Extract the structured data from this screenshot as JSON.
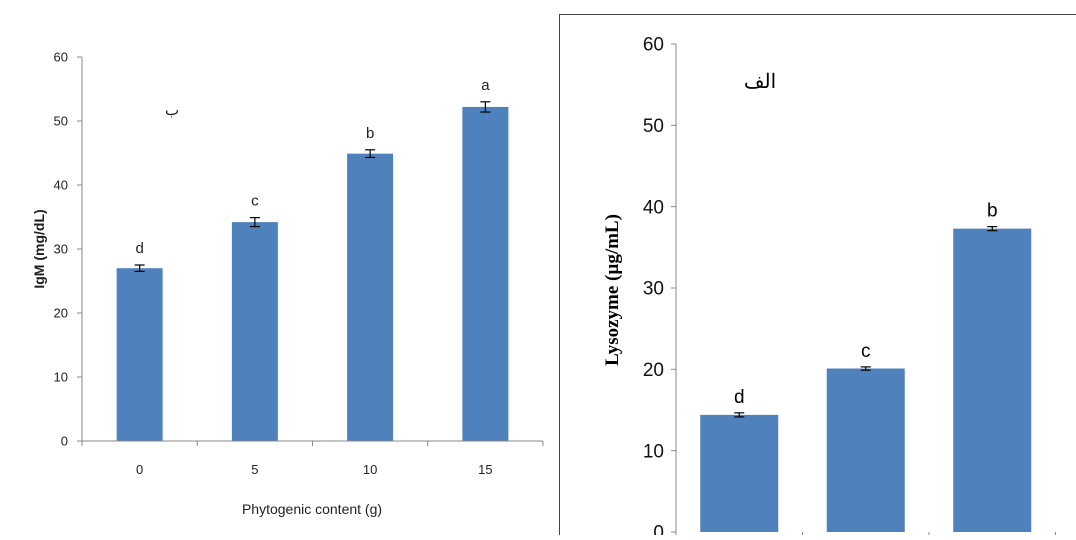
{
  "chart_data": [
    {
      "type": "bar",
      "panel_label": "ب",
      "title": "",
      "xlabel": "Phytogenic content (g)",
      "ylabel": "IgM (mg/dL)",
      "ylim": [
        0,
        60
      ],
      "yticks": [
        "0",
        "10",
        "20",
        "30",
        "40",
        "50",
        "60"
      ],
      "categories": [
        "0",
        "5",
        "10",
        "15"
      ],
      "values": [
        27,
        34.2,
        44.9,
        52.2
      ],
      "errors": [
        0.5,
        0.7,
        0.6,
        0.8
      ],
      "letters": [
        "d",
        "c",
        "b",
        "a"
      ],
      "grid": false,
      "bar_color": "#4f81bd"
    },
    {
      "type": "bar",
      "panel_label": "الف",
      "title": "",
      "xlabel": "",
      "ylabel": "Lysozyme (µg/mL)",
      "ylim": [
        0,
        60
      ],
      "yticks": [
        "0",
        "10",
        "20",
        "30",
        "40",
        "50",
        "60"
      ],
      "categories": [
        "",
        "",
        ""
      ],
      "values": [
        14.4,
        20.1,
        37.3
      ],
      "errors": [
        0.25,
        0.2,
        0.25
      ],
      "letters": [
        "d",
        "c",
        "b"
      ],
      "grid": false,
      "bar_color": "#4f81bd"
    }
  ]
}
